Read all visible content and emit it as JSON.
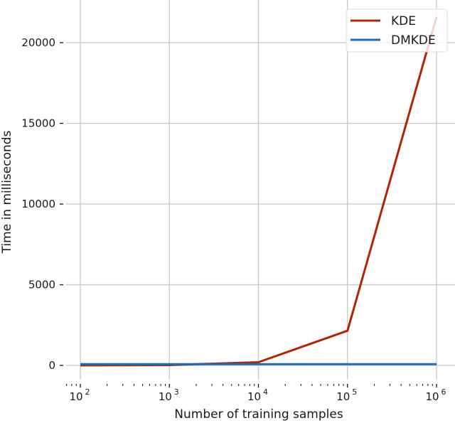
{
  "chart_data": {
    "type": "line",
    "title": "",
    "xlabel": "Number of training samples",
    "ylabel": "Time in milliseconds",
    "xscale": "log",
    "xlim": [
      100,
      1000000
    ],
    "ylim": [
      0,
      22000
    ],
    "grid": true,
    "legend_position": "upper right",
    "x": [
      100,
      1000,
      10000,
      100000,
      1000000
    ],
    "x_tick_labels": [
      {
        "base": "10",
        "exp": "2"
      },
      {
        "base": "10",
        "exp": "3"
      },
      {
        "base": "10",
        "exp": "4"
      },
      {
        "base": "10",
        "exp": "5"
      },
      {
        "base": "10",
        "exp": "6"
      }
    ],
    "y_ticks": [
      0,
      5000,
      10000,
      15000,
      20000
    ],
    "y_tick_labels": [
      "0",
      "5000",
      "10000",
      "15000",
      "20000"
    ],
    "series": [
      {
        "name": "KDE",
        "color": "#b22400",
        "values": [
          5,
          20,
          200,
          2150,
          21600
        ]
      },
      {
        "name": "DMKDE",
        "color": "#1a6db5",
        "values": [
          80,
          80,
          80,
          80,
          80
        ]
      }
    ]
  }
}
